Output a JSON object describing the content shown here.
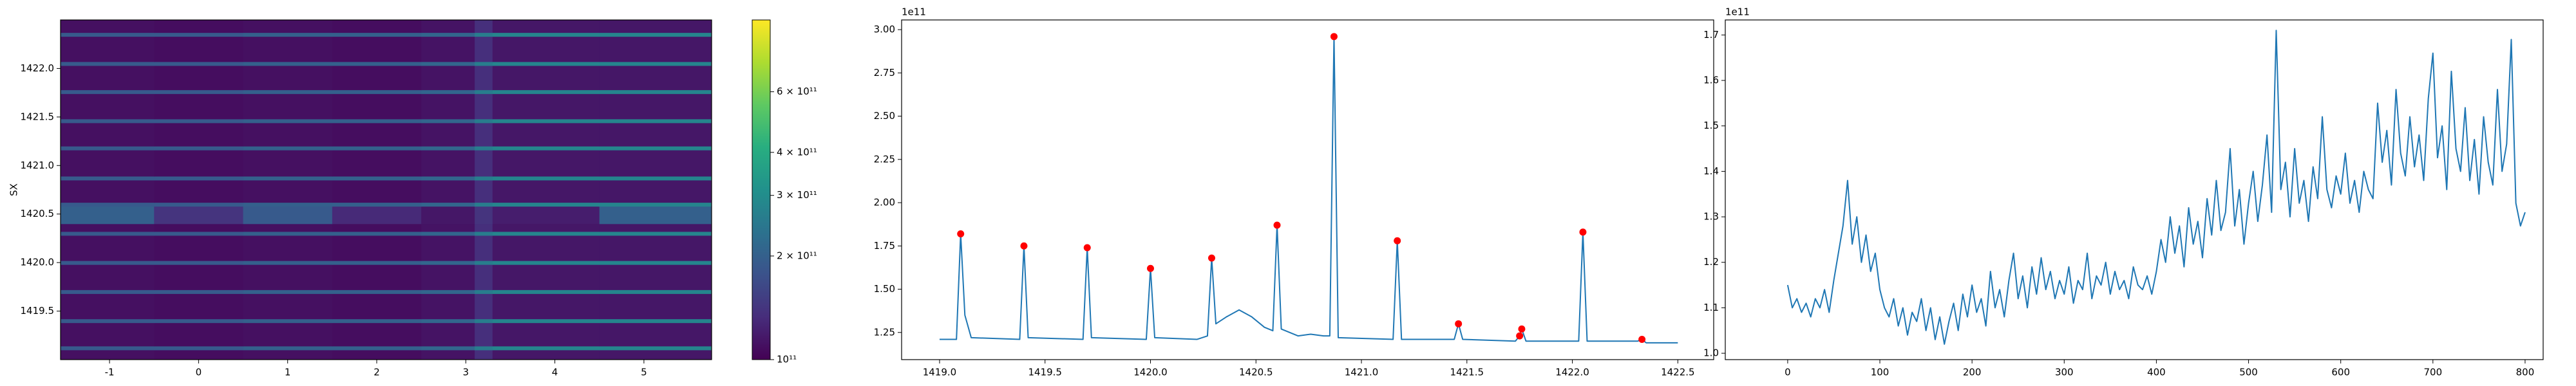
{
  "chart_data": [
    {
      "type": "heatmap",
      "ylabel": "SX",
      "x_edges": [
        -1.55,
        -0.5,
        0.5,
        1.5,
        2.5,
        3.1,
        3.3,
        4.5,
        5.76
      ],
      "y_edges": [
        1419.0,
        1419.1,
        1419.14,
        1419.38,
        1419.42,
        1419.68,
        1419.72,
        1419.98,
        1420.02,
        1420.28,
        1420.32,
        1420.4,
        1420.58,
        1420.62,
        1420.85,
        1420.89,
        1421.16,
        1421.2,
        1421.44,
        1421.48,
        1421.74,
        1421.78,
        1422.03,
        1422.07,
        1422.33,
        1422.37,
        1422.5
      ],
      "z": [
        [
          110000000000.0,
          108000000000.0,
          110000000000.0,
          108000000000.0,
          112000000000.0,
          135000000000.0,
          115000000000.0,
          115000000000.0
        ],
        [
          190000000000.0,
          190000000000.0,
          200000000000.0,
          200000000000.0,
          210000000000.0,
          260000000000.0,
          280000000000.0,
          280000000000.0
        ],
        [
          110000000000.0,
          108000000000.0,
          110000000000.0,
          108000000000.0,
          112000000000.0,
          135000000000.0,
          115000000000.0,
          115000000000.0
        ],
        [
          190000000000.0,
          190000000000.0,
          200000000000.0,
          200000000000.0,
          210000000000.0,
          260000000000.0,
          280000000000.0,
          280000000000.0
        ],
        [
          110000000000.0,
          108000000000.0,
          110000000000.0,
          108000000000.0,
          112000000000.0,
          135000000000.0,
          115000000000.0,
          115000000000.0
        ],
        [
          190000000000.0,
          190000000000.0,
          200000000000.0,
          200000000000.0,
          210000000000.0,
          260000000000.0,
          280000000000.0,
          280000000000.0
        ],
        [
          110000000000.0,
          108000000000.0,
          110000000000.0,
          108000000000.0,
          112000000000.0,
          135000000000.0,
          115000000000.0,
          115000000000.0
        ],
        [
          190000000000.0,
          190000000000.0,
          200000000000.0,
          200000000000.0,
          210000000000.0,
          260000000000.0,
          280000000000.0,
          280000000000.0
        ],
        [
          110000000000.0,
          108000000000.0,
          110000000000.0,
          108000000000.0,
          112000000000.0,
          135000000000.0,
          115000000000.0,
          115000000000.0
        ],
        [
          190000000000.0,
          190000000000.0,
          200000000000.0,
          200000000000.0,
          210000000000.0,
          260000000000.0,
          280000000000.0,
          280000000000.0
        ],
        [
          110000000000.0,
          108000000000.0,
          110000000000.0,
          108000000000.0,
          112000000000.0,
          135000000000.0,
          115000000000.0,
          115000000000.0
        ],
        [
          200000000000.0,
          140000000000.0,
          190000000000.0,
          130000000000.0,
          115000000000.0,
          140000000000.0,
          120000000000.0,
          200000000000.0
        ],
        [
          190000000000.0,
          190000000000.0,
          200000000000.0,
          200000000000.0,
          210000000000.0,
          260000000000.0,
          280000000000.0,
          280000000000.0
        ],
        [
          110000000000.0,
          108000000000.0,
          110000000000.0,
          108000000000.0,
          112000000000.0,
          135000000000.0,
          115000000000.0,
          115000000000.0
        ],
        [
          190000000000.0,
          190000000000.0,
          200000000000.0,
          200000000000.0,
          210000000000.0,
          260000000000.0,
          280000000000.0,
          280000000000.0
        ],
        [
          110000000000.0,
          108000000000.0,
          110000000000.0,
          108000000000.0,
          112000000000.0,
          135000000000.0,
          115000000000.0,
          115000000000.0
        ],
        [
          190000000000.0,
          190000000000.0,
          200000000000.0,
          200000000000.0,
          210000000000.0,
          260000000000.0,
          280000000000.0,
          280000000000.0
        ],
        [
          110000000000.0,
          108000000000.0,
          110000000000.0,
          108000000000.0,
          112000000000.0,
          135000000000.0,
          115000000000.0,
          115000000000.0
        ],
        [
          190000000000.0,
          190000000000.0,
          200000000000.0,
          200000000000.0,
          210000000000.0,
          260000000000.0,
          280000000000.0,
          280000000000.0
        ],
        [
          110000000000.0,
          108000000000.0,
          110000000000.0,
          108000000000.0,
          112000000000.0,
          135000000000.0,
          115000000000.0,
          115000000000.0
        ],
        [
          190000000000.0,
          190000000000.0,
          200000000000.0,
          200000000000.0,
          210000000000.0,
          260000000000.0,
          280000000000.0,
          280000000000.0
        ],
        [
          110000000000.0,
          108000000000.0,
          110000000000.0,
          108000000000.0,
          112000000000.0,
          135000000000.0,
          115000000000.0,
          115000000000.0
        ],
        [
          190000000000.0,
          190000000000.0,
          200000000000.0,
          200000000000.0,
          210000000000.0,
          260000000000.0,
          280000000000.0,
          280000000000.0
        ],
        [
          110000000000.0,
          108000000000.0,
          110000000000.0,
          108000000000.0,
          112000000000.0,
          135000000000.0,
          115000000000.0,
          115000000000.0
        ],
        [
          190000000000.0,
          190000000000.0,
          200000000000.0,
          200000000000.0,
          210000000000.0,
          260000000000.0,
          280000000000.0,
          280000000000.0
        ],
        [
          110000000000.0,
          108000000000.0,
          110000000000.0,
          108000000000.0,
          112000000000.0,
          135000000000.0,
          115000000000.0,
          115000000000.0
        ]
      ],
      "colormap": "viridis",
      "zscale": "log",
      "zlim": [
        100000000000.0,
        970000000000.0
      ],
      "zticks": [
        {
          "value": 100000000000.0,
          "label": "10¹¹"
        },
        {
          "value": 200000000000.0,
          "label": "2 × 10¹¹"
        },
        {
          "value": 300000000000.0,
          "label": "3 × 10¹¹"
        },
        {
          "value": 400000000000.0,
          "label": "4 × 10¹¹"
        },
        {
          "value": 600000000000.0,
          "label": "6 × 10¹¹"
        }
      ],
      "xlim": [
        -1.55,
        5.76
      ],
      "xticks": [
        -1,
        0,
        1,
        2,
        3,
        4,
        5
      ],
      "ylim": [
        1419.0,
        1422.5
      ],
      "yticks": [
        1419.5,
        {
          "value": 1420,
          "label": "1420.0"
        },
        1420.5,
        {
          "value": 1421,
          "label": "1421.0"
        },
        1421.5,
        {
          "value": 1422,
          "label": "1422.0"
        }
      ]
    },
    {
      "type": "line",
      "y_offset_label": "1e11",
      "x": [
        1419.0,
        1419.08,
        1419.1,
        1419.12,
        1419.15,
        1419.38,
        1419.4,
        1419.42,
        1419.68,
        1419.7,
        1419.72,
        1419.98,
        1420.0,
        1420.02,
        1420.22,
        1420.27,
        1420.29,
        1420.31,
        1420.36,
        1420.42,
        1420.48,
        1420.54,
        1420.58,
        1420.6,
        1420.62,
        1420.7,
        1420.76,
        1420.82,
        1420.85,
        1420.87,
        1420.89,
        1421.15,
        1421.17,
        1421.19,
        1421.44,
        1421.46,
        1421.48,
        1421.73,
        1421.75,
        1421.76,
        1421.78,
        1422.03,
        1422.05,
        1422.07,
        1422.31,
        1422.33,
        1422.35,
        1422.5
      ],
      "series": [
        {
          "color": "#1f77b4",
          "values": [
            1.21,
            1.21,
            1.82,
            1.35,
            1.22,
            1.21,
            1.75,
            1.22,
            1.21,
            1.74,
            1.22,
            1.21,
            1.62,
            1.22,
            1.21,
            1.23,
            1.68,
            1.3,
            1.34,
            1.38,
            1.34,
            1.28,
            1.26,
            1.87,
            1.27,
            1.23,
            1.24,
            1.23,
            1.23,
            2.96,
            1.22,
            1.21,
            1.78,
            1.21,
            1.21,
            1.3,
            1.21,
            1.2,
            1.23,
            1.27,
            1.2,
            1.2,
            1.83,
            1.2,
            1.2,
            1.21,
            1.19,
            1.19
          ]
        },
        {
          "type": "scatter",
          "color": "#ff0000",
          "x": [
            1419.1,
            1419.4,
            1419.7,
            1420.0,
            1420.29,
            1420.6,
            1420.87,
            1421.17,
            1421.46,
            1421.75,
            1421.76,
            1422.05,
            1422.33
          ],
          "values": [
            1.82,
            1.75,
            1.74,
            1.62,
            1.68,
            1.87,
            2.96,
            1.78,
            1.3,
            1.23,
            1.27,
            1.83,
            1.21
          ]
        }
      ],
      "xlim": [
        1418.82,
        1422.67
      ],
      "xticks": [
        {
          "value": 1419,
          "label": "1419.0"
        },
        1419.5,
        {
          "value": 1420,
          "label": "1420.0"
        },
        1420.5,
        {
          "value": 1421,
          "label": "1421.0"
        },
        1421.5,
        {
          "value": 1422,
          "label": "1422.0"
        },
        1422.5
      ],
      "ylim": [
        1.093,
        3.056
      ],
      "yticks": [
        1.25,
        {
          "value": 1.5,
          "label": "1.50"
        },
        1.75,
        {
          "value": 2,
          "label": "2.00"
        },
        2.25,
        {
          "value": 2.5,
          "label": "2.50"
        },
        2.75,
        {
          "value": 3,
          "label": "3.00"
        }
      ]
    },
    {
      "type": "line",
      "y_offset_label": "1e11",
      "x": [
        0,
        5,
        10,
        15,
        20,
        25,
        30,
        35,
        40,
        45,
        50,
        55,
        60,
        65,
        70,
        75,
        80,
        85,
        90,
        95,
        100,
        105,
        110,
        115,
        120,
        125,
        130,
        135,
        140,
        145,
        150,
        155,
        160,
        165,
        170,
        175,
        180,
        185,
        190,
        195,
        200,
        205,
        210,
        215,
        220,
        225,
        230,
        235,
        240,
        245,
        250,
        255,
        260,
        265,
        270,
        275,
        280,
        285,
        290,
        295,
        300,
        305,
        310,
        315,
        320,
        325,
        330,
        335,
        340,
        345,
        350,
        355,
        360,
        365,
        370,
        375,
        380,
        385,
        390,
        395,
        400,
        405,
        410,
        415,
        420,
        425,
        430,
        435,
        440,
        445,
        450,
        455,
        460,
        465,
        470,
        475,
        480,
        485,
        490,
        495,
        500,
        505,
        510,
        515,
        520,
        525,
        530,
        535,
        540,
        545,
        550,
        555,
        560,
        565,
        570,
        575,
        580,
        585,
        590,
        595,
        600,
        605,
        610,
        615,
        620,
        625,
        630,
        635,
        640,
        645,
        650,
        655,
        660,
        665,
        670,
        675,
        680,
        685,
        690,
        695,
        700,
        705,
        710,
        715,
        720,
        725,
        730,
        735,
        740,
        745,
        750,
        755,
        760,
        765,
        770,
        775,
        780,
        785,
        790,
        795,
        800
      ],
      "series": [
        {
          "color": "#1f77b4",
          "values": [
            1.15,
            1.1,
            1.12,
            1.09,
            1.11,
            1.08,
            1.12,
            1.1,
            1.14,
            1.09,
            1.16,
            1.22,
            1.28,
            1.38,
            1.24,
            1.3,
            1.2,
            1.26,
            1.18,
            1.22,
            1.14,
            1.1,
            1.08,
            1.12,
            1.06,
            1.1,
            1.04,
            1.09,
            1.07,
            1.12,
            1.05,
            1.1,
            1.03,
            1.08,
            1.02,
            1.07,
            1.11,
            1.05,
            1.13,
            1.08,
            1.15,
            1.09,
            1.12,
            1.06,
            1.18,
            1.1,
            1.14,
            1.08,
            1.16,
            1.22,
            1.12,
            1.17,
            1.1,
            1.19,
            1.13,
            1.21,
            1.14,
            1.18,
            1.12,
            1.16,
            1.13,
            1.19,
            1.11,
            1.16,
            1.14,
            1.22,
            1.12,
            1.17,
            1.15,
            1.2,
            1.13,
            1.18,
            1.14,
            1.16,
            1.12,
            1.19,
            1.15,
            1.14,
            1.17,
            1.13,
            1.18,
            1.25,
            1.2,
            1.3,
            1.22,
            1.28,
            1.19,
            1.32,
            1.24,
            1.29,
            1.21,
            1.34,
            1.26,
            1.38,
            1.27,
            1.31,
            1.45,
            1.28,
            1.36,
            1.24,
            1.33,
            1.4,
            1.29,
            1.37,
            1.48,
            1.31,
            1.71,
            1.36,
            1.42,
            1.3,
            1.45,
            1.33,
            1.38,
            1.29,
            1.41,
            1.34,
            1.52,
            1.36,
            1.32,
            1.39,
            1.35,
            1.44,
            1.33,
            1.38,
            1.31,
            1.4,
            1.36,
            1.34,
            1.55,
            1.42,
            1.49,
            1.37,
            1.58,
            1.44,
            1.39,
            1.52,
            1.41,
            1.48,
            1.38,
            1.56,
            1.66,
            1.43,
            1.5,
            1.36,
            1.62,
            1.45,
            1.4,
            1.54,
            1.38,
            1.47,
            1.35,
            1.52,
            1.42,
            1.37,
            1.58,
            1.4,
            1.46,
            1.69,
            1.33,
            1.28,
            1.31
          ]
        }
      ],
      "xlim": [
        -67.7,
        819.6
      ],
      "xticks": [
        0,
        100,
        200,
        300,
        400,
        500,
        600,
        700,
        800
      ],
      "ylim": [
        0.986,
        1.733
      ],
      "yticks": [
        {
          "value": 1,
          "label": "1.0"
        },
        1.1,
        1.2,
        1.3,
        1.4,
        1.5,
        1.6,
        1.7
      ]
    }
  ]
}
